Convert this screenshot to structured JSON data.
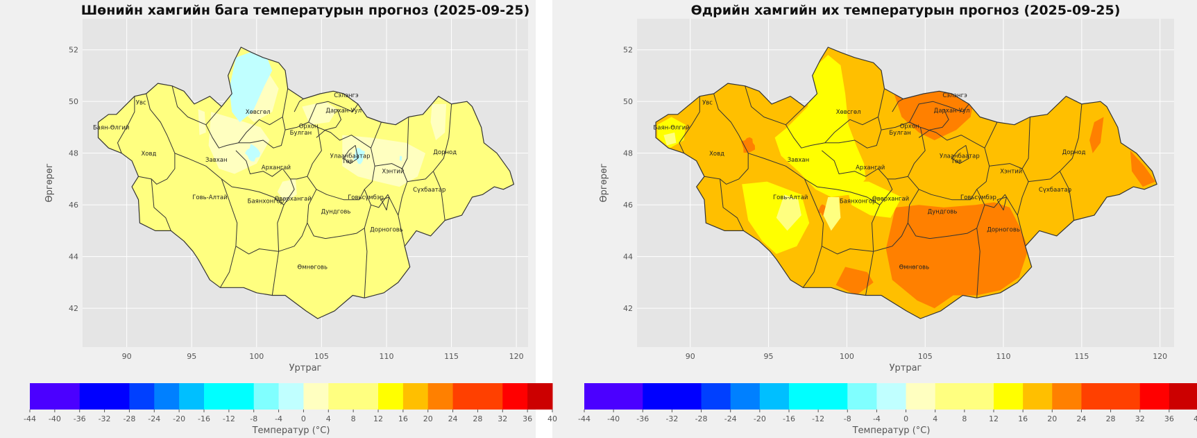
{
  "maps": [
    {
      "title": "Шөнийн хамгийн бага температурын прогноз (2025-09-25)",
      "kind": "min",
      "xlabel": "Уртраг",
      "ylabel": "Өргөрөг",
      "colorbar_label": "Температур (°C)",
      "x_ticks": [
        "90",
        "95",
        "100",
        "105",
        "110",
        "115",
        "120"
      ],
      "y_ticks": [
        "52",
        "50",
        "48",
        "46",
        "44",
        "42"
      ],
      "provinces": [
        "Увс",
        "Баян-Өлгий",
        "Ховд",
        "Хөвсгөл",
        "Завхан",
        "Архангай",
        "Булган",
        "Орхон",
        "Сэлэнгэ",
        "Дархан-Уул",
        "Улаанбаатар",
        "Төв",
        "Хэнтий",
        "Дорнод",
        "Сүхбаатар",
        "Говь-Алтай",
        "Баянхонгор",
        "Өвөрхангай",
        "Говьсүмбэр",
        "Дундговь",
        "Дорноговь",
        "Өмнөговь"
      ]
    },
    {
      "title": "Өдрийн хамгийн их температурын прогноз (2025-09-25)",
      "kind": "max",
      "xlabel": "Уртраг",
      "ylabel": "Өргөрөг",
      "colorbar_label": "Температур (°C)",
      "x_ticks": [
        "90",
        "95",
        "100",
        "105",
        "110",
        "115",
        "120"
      ],
      "y_ticks": [
        "52",
        "50",
        "48",
        "46",
        "44",
        "42"
      ],
      "provinces": [
        "Увс",
        "Баян-Өлгий",
        "Ховд",
        "Хөвсгөл",
        "Завхан",
        "Архангай",
        "Булган",
        "Орхон",
        "Сэлэнгэ",
        "Дархан-Уул",
        "Улаанбаатар",
        "Төв",
        "Хэнтий",
        "Дорнод",
        "Сүхбаатар",
        "Говь-Алтай",
        "Баянхонгор",
        "Өвөрхангай",
        "Говьсүмбэр",
        "Дундговь",
        "Дорноговь",
        "Өмнөговь"
      ]
    }
  ],
  "colorbar": {
    "ticks": [
      "-44",
      "-40",
      "-36",
      "-32",
      "-28",
      "-24",
      "-20",
      "-16",
      "-12",
      "-8",
      "-4",
      "0",
      "4",
      "8",
      "12",
      "16",
      "20",
      "24",
      "28",
      "32",
      "36",
      "40"
    ],
    "bins": [
      {
        "from": -44,
        "to": -36,
        "color": "#4b00ff"
      },
      {
        "from": -36,
        "to": -28,
        "color": "#0000ff"
      },
      {
        "from": -28,
        "to": -24,
        "color": "#0040ff"
      },
      {
        "from": -24,
        "to": -20,
        "color": "#0080ff"
      },
      {
        "from": -20,
        "to": -16,
        "color": "#00bfff"
      },
      {
        "from": -16,
        "to": -8,
        "color": "#00ffff"
      },
      {
        "from": -8,
        "to": -4,
        "color": "#80ffff"
      },
      {
        "from": -4,
        "to": 0,
        "color": "#c0ffff"
      },
      {
        "from": 0,
        "to": 4,
        "color": "#ffffc0"
      },
      {
        "from": 4,
        "to": 12,
        "color": "#ffff80"
      },
      {
        "from": 12,
        "to": 16,
        "color": "#ffff00"
      },
      {
        "from": 16,
        "to": 20,
        "color": "#ffbf00"
      },
      {
        "from": 20,
        "to": 24,
        "color": "#ff8000"
      },
      {
        "from": 24,
        "to": 32,
        "color": "#ff4000"
      },
      {
        "from": 32,
        "to": 36,
        "color": "#ff0000"
      },
      {
        "from": 36,
        "to": 40,
        "color": "#cc0000"
      }
    ]
  },
  "colors": {
    "panel": "#f0f0f0",
    "axes": "#e5e5e5",
    "grid": "#ffffff",
    "border": "#333333"
  }
}
